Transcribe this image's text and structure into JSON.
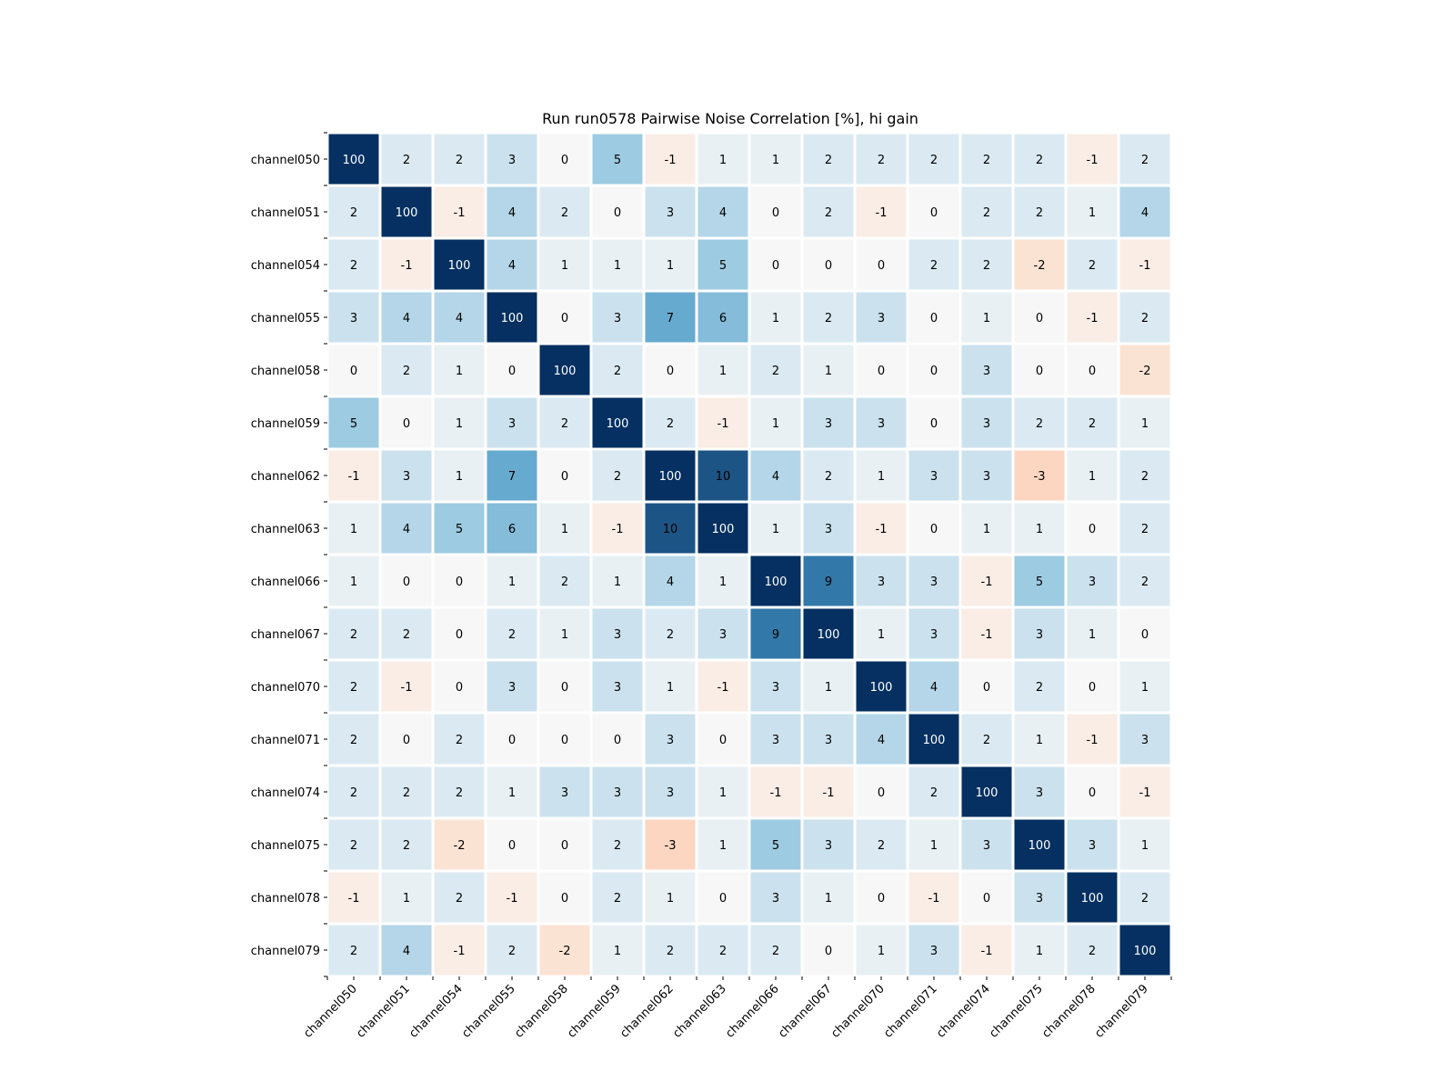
{
  "chart_data": {
    "type": "heatmap",
    "title": "Run run0578 Pairwise Noise Correlation [%], hi gain",
    "xlabel": "",
    "ylabel": "",
    "labels": [
      "channel050",
      "channel051",
      "channel054",
      "channel055",
      "channel058",
      "channel059",
      "channel062",
      "channel063",
      "channel066",
      "channel067",
      "channel070",
      "channel071",
      "channel074",
      "channel075",
      "channel078",
      "channel079"
    ],
    "values": [
      [
        100,
        2,
        2,
        3,
        0,
        5,
        -1,
        1,
        1,
        2,
        2,
        2,
        2,
        2,
        -1,
        2
      ],
      [
        2,
        100,
        -1,
        4,
        2,
        0,
        3,
        4,
        0,
        2,
        -1,
        0,
        2,
        2,
        1,
        4
      ],
      [
        2,
        -1,
        100,
        4,
        1,
        1,
        1,
        5,
        0,
        0,
        0,
        2,
        2,
        -2,
        2,
        -1
      ],
      [
        3,
        4,
        4,
        100,
        0,
        3,
        7,
        6,
        1,
        2,
        3,
        0,
        1,
        0,
        -1,
        2
      ],
      [
        0,
        2,
        1,
        0,
        100,
        2,
        0,
        1,
        2,
        1,
        0,
        0,
        3,
        0,
        0,
        -2
      ],
      [
        5,
        0,
        1,
        3,
        2,
        100,
        2,
        -1,
        1,
        3,
        3,
        0,
        3,
        2,
        2,
        1
      ],
      [
        -1,
        3,
        1,
        7,
        0,
        2,
        100,
        10,
        4,
        2,
        1,
        3,
        3,
        -3,
        1,
        2
      ],
      [
        1,
        4,
        5,
        6,
        1,
        -1,
        10,
        100,
        1,
        3,
        -1,
        0,
        1,
        1,
        0,
        2
      ],
      [
        1,
        0,
        0,
        1,
        2,
        1,
        4,
        1,
        100,
        9,
        3,
        3,
        -1,
        5,
        3,
        2
      ],
      [
        2,
        2,
        0,
        2,
        1,
        3,
        2,
        3,
        9,
        100,
        1,
        3,
        -1,
        3,
        1,
        0
      ],
      [
        2,
        -1,
        0,
        3,
        0,
        3,
        1,
        -1,
        3,
        1,
        100,
        4,
        0,
        2,
        0,
        1
      ],
      [
        2,
        0,
        2,
        0,
        0,
        0,
        3,
        0,
        3,
        3,
        4,
        100,
        2,
        1,
        -1,
        3
      ],
      [
        2,
        2,
        2,
        1,
        3,
        3,
        3,
        1,
        -1,
        -1,
        0,
        2,
        100,
        3,
        0,
        -1
      ],
      [
        2,
        2,
        -2,
        0,
        0,
        2,
        -3,
        1,
        5,
        3,
        2,
        1,
        3,
        100,
        3,
        1
      ],
      [
        -1,
        1,
        2,
        -1,
        0,
        2,
        1,
        0,
        3,
        1,
        0,
        -1,
        0,
        3,
        100,
        2
      ],
      [
        2,
        4,
        -1,
        2,
        -2,
        1,
        2,
        2,
        2,
        0,
        1,
        3,
        -1,
        1,
        2,
        100
      ]
    ],
    "colormap": "diverging blue-red, centered at 0",
    "grid": false,
    "legend": "none"
  }
}
